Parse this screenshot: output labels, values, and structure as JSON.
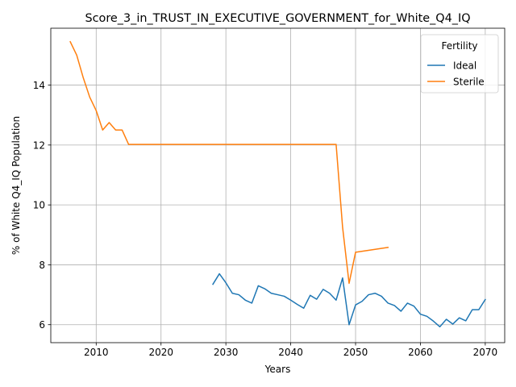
{
  "chart_data": {
    "type": "line",
    "title": "Score_3_in_TRUST_IN_EXECUTIVE_GOVERNMENT_for_White_Q4_IQ",
    "xlabel": "Years",
    "ylabel": "% of White Q4_IQ Population",
    "xlim": [
      2003,
      2073
    ],
    "ylim": [
      5.4,
      15.9
    ],
    "xticks": [
      2010,
      2020,
      2030,
      2040,
      2050,
      2060,
      2070
    ],
    "yticks": [
      6,
      8,
      10,
      12,
      14
    ],
    "grid": true,
    "legend": {
      "title": "Fertility",
      "placement": "top-right"
    },
    "series": [
      {
        "name": "Ideal",
        "color": "#1f77b4",
        "x": [
          2028,
          2029,
          2030,
          2031,
          2032,
          2033,
          2034,
          2035,
          2036,
          2037,
          2038,
          2039,
          2040,
          2041,
          2042,
          2043,
          2044,
          2045,
          2046,
          2047,
          2048,
          2049,
          2050,
          2051,
          2052,
          2053,
          2054,
          2055,
          2056,
          2057,
          2058,
          2059,
          2060,
          2061,
          2062,
          2063,
          2064,
          2065,
          2066,
          2067,
          2068,
          2069,
          2070
        ],
        "y": [
          7.35,
          7.7,
          7.4,
          7.05,
          7.0,
          6.82,
          6.72,
          7.3,
          7.2,
          7.05,
          7.0,
          6.95,
          6.82,
          6.68,
          6.55,
          6.98,
          6.85,
          7.18,
          7.05,
          6.82,
          7.56,
          6.0,
          6.66,
          6.78,
          7.0,
          7.05,
          6.95,
          6.72,
          6.64,
          6.45,
          6.72,
          6.62,
          6.35,
          6.28,
          6.12,
          5.93,
          6.18,
          6.02,
          6.23,
          6.13,
          6.5,
          6.5,
          6.84
        ]
      },
      {
        "name": "Sterile",
        "color": "#ff7f0e",
        "x": [
          2006,
          2007,
          2008,
          2009,
          2010,
          2011,
          2012,
          2013,
          2014,
          2015,
          2016,
          2017,
          2018,
          2019,
          2020,
          2021,
          2022,
          2023,
          2024,
          2025,
          2026,
          2027,
          2028,
          2029,
          2030,
          2031,
          2032,
          2033,
          2034,
          2035,
          2036,
          2037,
          2038,
          2039,
          2040,
          2041,
          2042,
          2043,
          2044,
          2045,
          2046,
          2047,
          2048,
          2049,
          2050,
          2055
        ],
        "y": [
          15.45,
          15.0,
          14.25,
          13.6,
          13.15,
          12.5,
          12.75,
          12.5,
          12.5,
          12.02,
          12.02,
          12.02,
          12.02,
          12.02,
          12.02,
          12.02,
          12.02,
          12.02,
          12.02,
          12.02,
          12.02,
          12.02,
          12.02,
          12.02,
          12.02,
          12.02,
          12.02,
          12.02,
          12.02,
          12.02,
          12.02,
          12.02,
          12.02,
          12.02,
          12.02,
          12.02,
          12.02,
          12.02,
          12.02,
          12.02,
          12.02,
          12.02,
          9.25,
          7.38,
          8.42,
          8.58
        ]
      }
    ]
  }
}
